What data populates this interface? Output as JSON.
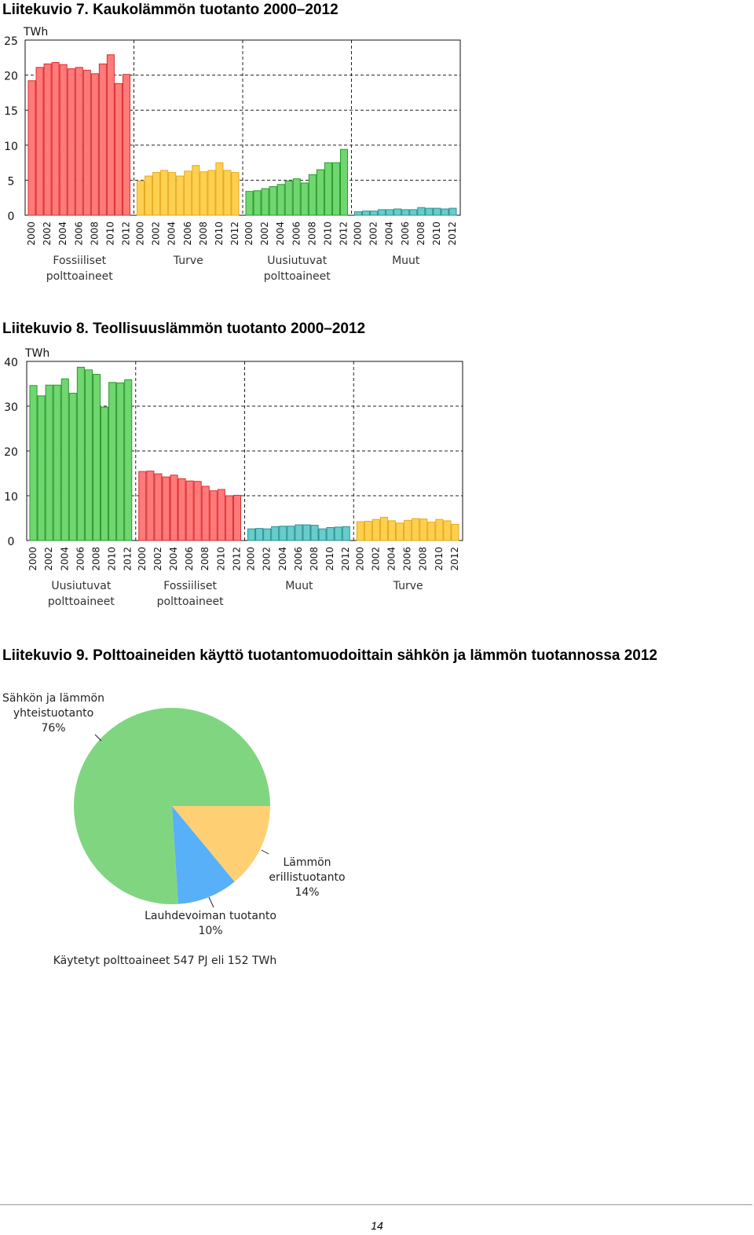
{
  "figures": [
    {
      "title": "Liitekuvio 7. Kaukolämmön tuotanto 2000–2012"
    },
    {
      "title": "Liitekuvio 8. Teollisuuslämmön tuotanto 2000–2012"
    },
    {
      "title": "Liitekuvio 9. Polttoaineiden käyttö tuotantomuodoittain sähkön ja lämmön tuotannossa 2012"
    }
  ],
  "chart_data": [
    {
      "type": "bar",
      "ylabel": "TWh",
      "ylim": [
        0,
        25
      ],
      "yticks": [
        0,
        5,
        10,
        15,
        20,
        25
      ],
      "grid": true,
      "years": [
        "2000",
        "2001",
        "2002",
        "2003",
        "2004",
        "2005",
        "2006",
        "2007",
        "2008",
        "2009",
        "2010",
        "2011",
        "2012"
      ],
      "year_tick_labels": [
        "2000",
        "2002",
        "2004",
        "2006",
        "2008",
        "2010",
        "2012"
      ],
      "series": [
        {
          "name": "Fossiiliset\npolttoaineet",
          "color": "#ff7a7a",
          "edge": "#d82f2f",
          "values": [
            19.2,
            21.1,
            21.6,
            21.8,
            21.5,
            20.9,
            21.1,
            20.7,
            20.2,
            21.6,
            22.9,
            18.8,
            20.1
          ]
        },
        {
          "name": "Turve",
          "color": "#ffd050",
          "edge": "#e6a91a",
          "values": [
            4.9,
            5.6,
            6.1,
            6.4,
            6.1,
            5.6,
            6.3,
            7.1,
            6.2,
            6.4,
            7.5,
            6.4,
            6.1
          ]
        },
        {
          "name": "Uusiutuvat\npolttoaineet",
          "color": "#70d670",
          "edge": "#2a9a2a",
          "values": [
            3.4,
            3.5,
            3.8,
            4.1,
            4.4,
            4.9,
            5.2,
            4.6,
            5.8,
            6.5,
            7.5,
            7.5,
            9.4
          ]
        },
        {
          "name": "Muut",
          "color": "#66cccc",
          "edge": "#2e8f8f",
          "values": [
            0.5,
            0.6,
            0.6,
            0.8,
            0.8,
            0.9,
            0.8,
            0.8,
            1.1,
            1.0,
            1.0,
            0.9,
            1.0
          ]
        }
      ]
    },
    {
      "type": "bar",
      "ylabel": "TWh",
      "ylim": [
        0,
        40
      ],
      "yticks": [
        0,
        10,
        20,
        30,
        40
      ],
      "grid": true,
      "years": [
        "2000",
        "2001",
        "2002",
        "2003",
        "2004",
        "2005",
        "2006",
        "2007",
        "2008",
        "2009",
        "2010",
        "2011",
        "2012"
      ],
      "year_tick_labels": [
        "2000",
        "2002",
        "2004",
        "2006",
        "2008",
        "2010",
        "2012"
      ],
      "series": [
        {
          "name": "Uusiutuvat\npolttoaineet",
          "color": "#70d670",
          "edge": "#2a9a2a",
          "values": [
            34.6,
            32.3,
            34.7,
            34.7,
            36.1,
            32.9,
            38.7,
            38.1,
            37.1,
            29.8,
            35.3,
            35.2,
            35.9
          ]
        },
        {
          "name": "Fossiiliset\npolttoaineet",
          "color": "#ff7a7a",
          "edge": "#d82f2f",
          "values": [
            15.4,
            15.5,
            14.9,
            14.2,
            14.6,
            13.8,
            13.3,
            13.2,
            12.1,
            11.1,
            11.4,
            10.0,
            10.1
          ]
        },
        {
          "name": "Muut",
          "color": "#66cccc",
          "edge": "#2e8f8f",
          "values": [
            2.6,
            2.7,
            2.6,
            3.1,
            3.2,
            3.2,
            3.5,
            3.5,
            3.4,
            2.6,
            2.9,
            3.0,
            3.1
          ]
        },
        {
          "name": "Turve",
          "color": "#ffd050",
          "edge": "#e6a91a",
          "values": [
            4.2,
            4.3,
            4.7,
            5.2,
            4.4,
            3.9,
            4.5,
            4.9,
            4.8,
            4.1,
            4.7,
            4.4,
            3.6
          ]
        }
      ]
    },
    {
      "type": "pie",
      "total_label": "Käytetyt polttoaineet 547 PJ eli 152 TWh",
      "slices": [
        {
          "name": "Sähkön ja lämmön\nyhteistuotanto",
          "pct_label": "76%",
          "value": 76,
          "color": "#80d680"
        },
        {
          "name": "Lauhdevoiman tuotanto",
          "pct_label": "10%",
          "value": 10,
          "color": "#58b0f8"
        },
        {
          "name": "Lämmön\nerillistuotanto",
          "pct_label": "14%",
          "value": 14,
          "color": "#ffd073"
        }
      ]
    }
  ],
  "page_number": "14"
}
